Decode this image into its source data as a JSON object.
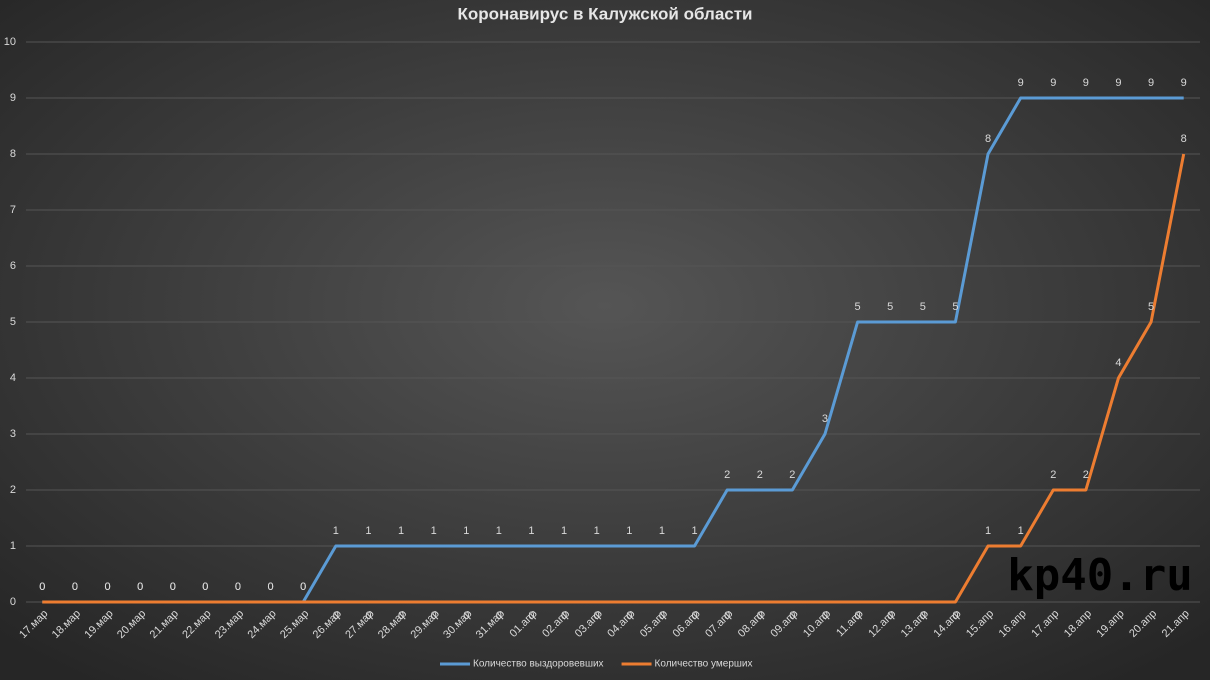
{
  "chart_data": {
    "type": "line",
    "title": "Коронавирус в Калужской области",
    "categories": [
      "17.мар",
      "18.мар",
      "19.мар",
      "20.мар",
      "21.мар",
      "22.мар",
      "23.мар",
      "24.мар",
      "25.мар",
      "26.мар",
      "27.мар",
      "28.мар",
      "29.мар",
      "30.мар",
      "31.мар",
      "01.апр",
      "02.апр",
      "03.апр",
      "04.апр",
      "05.апр",
      "06.апр",
      "07.апр",
      "08.апр",
      "09.апр",
      "10.апр",
      "11.апр",
      "12.апр",
      "13.апр",
      "14.апр",
      "15.апр",
      "16.апр",
      "17.апр",
      "18.апр",
      "19.апр",
      "20.апр",
      "21.апр"
    ],
    "series": [
      {
        "name": "Количество выздоровевших",
        "color": "#5b9bd5",
        "values": [
          0,
          0,
          0,
          0,
          0,
          0,
          0,
          0,
          0,
          1,
          1,
          1,
          1,
          1,
          1,
          1,
          1,
          1,
          1,
          1,
          1,
          2,
          2,
          2,
          3,
          5,
          5,
          5,
          5,
          8,
          9,
          9,
          9,
          9,
          9,
          9
        ]
      },
      {
        "name": "Количество умерших",
        "color": "#ed7d31",
        "values": [
          0,
          0,
          0,
          0,
          0,
          0,
          0,
          0,
          0,
          0,
          0,
          0,
          0,
          0,
          0,
          0,
          0,
          0,
          0,
          0,
          0,
          0,
          0,
          0,
          0,
          0,
          0,
          0,
          0,
          1,
          1,
          2,
          2,
          4,
          5,
          8
        ]
      }
    ],
    "ylim": [
      0,
      10
    ],
    "yticks": [
      0,
      1,
      2,
      3,
      4,
      5,
      6,
      7,
      8,
      9,
      10
    ],
    "grid": true,
    "legend": "bottom",
    "watermark": "kp40.ru"
  }
}
